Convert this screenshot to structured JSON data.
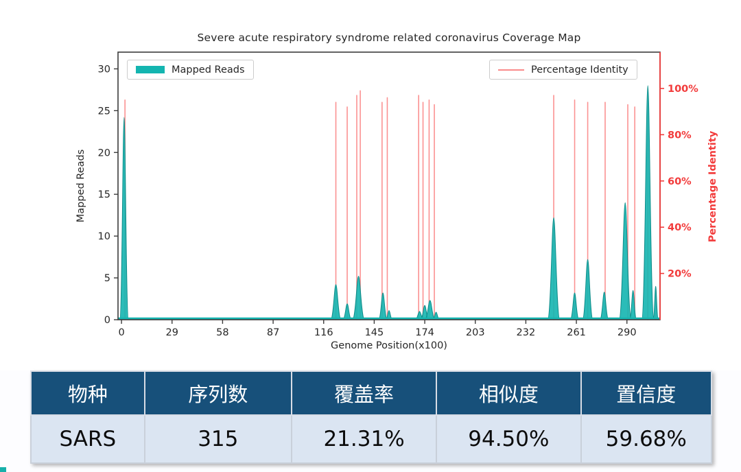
{
  "chart_data": {
    "type": "bar+line (dual axis coverage map)",
    "title": "Severe acute respiratory syndrome related coronavirus Coverage Map",
    "xlabel": "Genome Position(x100)",
    "ylabel_left": "Mapped Reads",
    "ylabel_right": "Percentage Identity",
    "legend": [
      {
        "label": "Mapped Reads",
        "type": "bar",
        "color": "#14b5b0"
      },
      {
        "label": "Percentage Identity",
        "type": "line",
        "color": "#fa8a8a"
      }
    ],
    "legend_position": "top-left and top-right inside axes",
    "grid": false,
    "x_ticks": [
      0,
      29,
      58,
      87,
      116,
      145,
      174,
      203,
      232,
      261,
      290
    ],
    "y_ticks_left": [
      0,
      5,
      10,
      15,
      20,
      25,
      30
    ],
    "y_ticks_right_pct": [
      20,
      40,
      60,
      80,
      100
    ],
    "x_range": [
      -2,
      309
    ],
    "y_left_range": [
      0,
      32
    ],
    "y_right_range_pct": [
      0,
      115.7
    ],
    "colors": {
      "reads_fill": "#14b5b0",
      "reads_edge": "#0d8b88",
      "identity_line": "#fb9191",
      "identity_axis": "#f23b3b",
      "frame": "#3b3b3b",
      "tick_text": "#262626"
    },
    "mapped_reads_bars": [
      {
        "x": 1.5,
        "h": 24.2,
        "w": 2.5
      },
      {
        "x": 123,
        "h": 4.2,
        "w": 3
      },
      {
        "x": 129.5,
        "h": 1.9,
        "w": 2.5
      },
      {
        "x": 136,
        "h": 5.2,
        "w": 3.5
      },
      {
        "x": 150,
        "h": 3.2,
        "w": 2.5
      },
      {
        "x": 153.5,
        "h": 1.1,
        "w": 2
      },
      {
        "x": 171,
        "h": 1.0,
        "w": 2.5
      },
      {
        "x": 174,
        "h": 1.7,
        "w": 2.5
      },
      {
        "x": 177,
        "h": 2.3,
        "w": 3
      },
      {
        "x": 180.5,
        "h": 0.9,
        "w": 2
      },
      {
        "x": 248,
        "h": 12.2,
        "w": 3.5
      },
      {
        "x": 260,
        "h": 3.2,
        "w": 2.5
      },
      {
        "x": 267.5,
        "h": 7.2,
        "w": 3
      },
      {
        "x": 277,
        "h": 3.3,
        "w": 2.5
      },
      {
        "x": 289,
        "h": 14.0,
        "w": 3.5
      },
      {
        "x": 293.5,
        "h": 3.5,
        "w": 2
      },
      {
        "x": 302,
        "h": 28.0,
        "w": 3.5
      },
      {
        "x": 306.5,
        "h": 4.0,
        "w": 1.5
      }
    ],
    "identity_spikes_pct": [
      {
        "x": 2,
        "p": 95
      },
      {
        "x": 123,
        "p": 94
      },
      {
        "x": 129.5,
        "p": 92
      },
      {
        "x": 135,
        "p": 97
      },
      {
        "x": 137,
        "p": 99
      },
      {
        "x": 149.5,
        "p": 94
      },
      {
        "x": 152.5,
        "p": 96
      },
      {
        "x": 170.5,
        "p": 97
      },
      {
        "x": 173,
        "p": 94
      },
      {
        "x": 176.5,
        "p": 95
      },
      {
        "x": 179.5,
        "p": 93
      },
      {
        "x": 248,
        "p": 97
      },
      {
        "x": 260,
        "p": 95
      },
      {
        "x": 267.5,
        "p": 94
      },
      {
        "x": 277.5,
        "p": 94
      },
      {
        "x": 290.5,
        "p": 93
      },
      {
        "x": 294.5,
        "p": 92
      },
      {
        "x": 302,
        "p": 100
      },
      {
        "x": 306.5,
        "p": 13
      }
    ]
  },
  "table": {
    "headers": [
      "物种",
      "序列数",
      "覆盖率",
      "相似度",
      "置信度"
    ],
    "rows": [
      [
        "SARS",
        "315",
        "21.31%",
        "94.50%",
        "59.68%"
      ]
    ],
    "header_bg": "#17507a",
    "row_bg": "#dbe5f2"
  }
}
